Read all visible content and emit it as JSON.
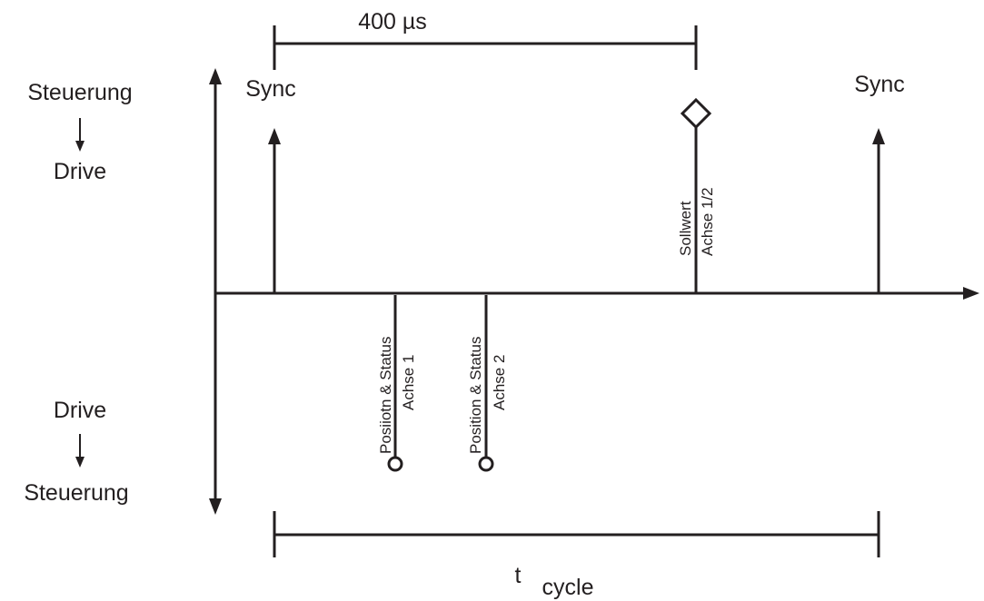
{
  "diagram": {
    "top_label": "400 µs",
    "bottom_label_t": "t",
    "bottom_label_sub": "cycle",
    "left_top": {
      "line1": "Steuerung",
      "arrow": "↓",
      "line2": "Drive"
    },
    "left_bottom": {
      "line1": "Drive",
      "arrow": "↓",
      "line2": "Steuerung"
    },
    "sync_left": "Sync",
    "sync_right": "Sync",
    "sollwert": {
      "line1": "Sollwert",
      "line2": "Achse 1/2"
    },
    "feedback_1": {
      "line1": "Posiiotn & Status",
      "line2": "Achse 1"
    },
    "feedback_2": {
      "line1": "Position & Status",
      "line2": "Achse 2"
    }
  }
}
